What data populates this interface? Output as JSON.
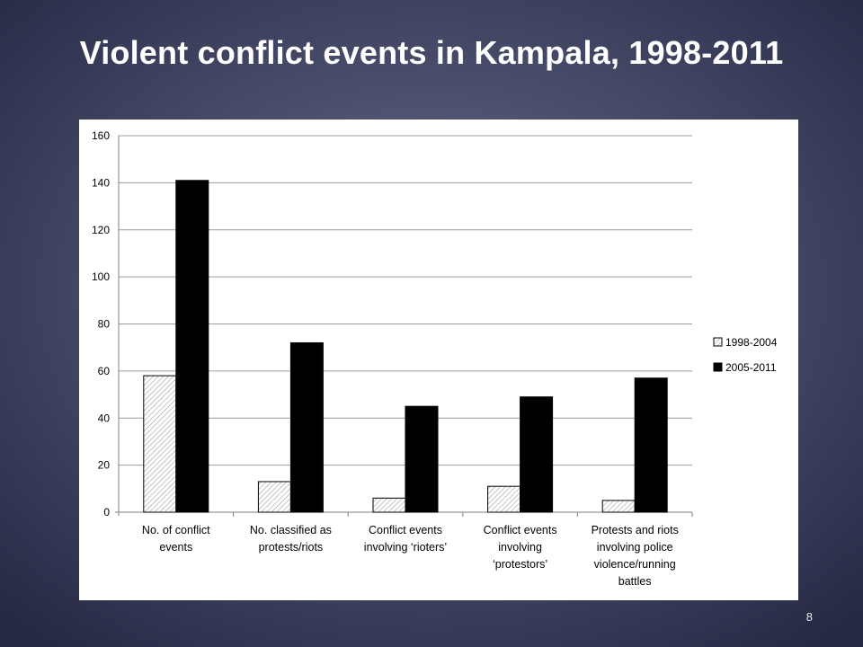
{
  "slide": {
    "title": "Violent conflict events in Kampala, 1998-2011",
    "page_number": "8"
  },
  "colors": {
    "bar_dark": "#000000",
    "bar_hatch_stroke": "#a0a0a0",
    "grid": "#9c9c9c"
  },
  "chart_data": {
    "type": "bar",
    "title": "",
    "xlabel": "",
    "ylabel": "",
    "ylim": [
      0,
      160
    ],
    "yticks": [
      0,
      20,
      40,
      60,
      80,
      100,
      120,
      140,
      160
    ],
    "grid": true,
    "legend_position": "right",
    "categories": [
      [
        "No. of conflict",
        "events"
      ],
      [
        "No. classified as",
        "protests/riots"
      ],
      [
        "Conflict events",
        "involving ‘rioters’"
      ],
      [
        "Conflict events",
        "involving",
        "‘protestors’"
      ],
      [
        "Protests and riots",
        "involving police",
        "violence/running",
        "battles"
      ]
    ],
    "series": [
      {
        "name": "1998-2004",
        "values": [
          58,
          13,
          6,
          11,
          5
        ],
        "fill": "hatched"
      },
      {
        "name": "2005-2011",
        "values": [
          141,
          72,
          45,
          49,
          57
        ],
        "fill": "#000000"
      }
    ]
  }
}
